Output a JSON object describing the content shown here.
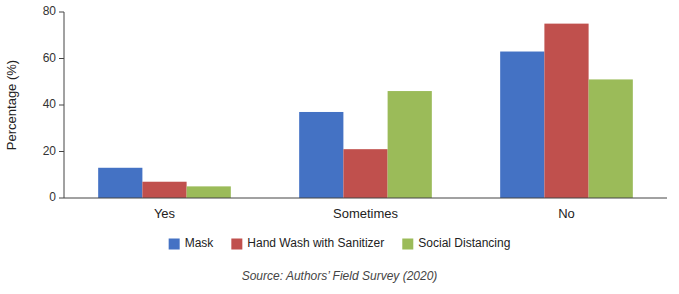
{
  "chart_data": {
    "type": "bar",
    "categories": [
      "Yes",
      "Sometimes",
      "No"
    ],
    "series": [
      {
        "name": "Mask",
        "color": "#4472C4",
        "values": [
          13,
          37,
          63
        ]
      },
      {
        "name": "Hand Wash with Sanitizer",
        "color": "#C0504D",
        "values": [
          7,
          21,
          75
        ]
      },
      {
        "name": "Social Distancing",
        "color": "#9BBB59",
        "values": [
          5,
          46,
          51
        ]
      }
    ],
    "ylabel": "Percentage (%)",
    "ylim": [
      0,
      80
    ],
    "yticks": [
      0,
      20,
      40,
      60,
      80
    ],
    "annotations": [
      "Source: Authors’ Field Survey (2020)"
    ],
    "legend": "bottom",
    "grid": false
  }
}
